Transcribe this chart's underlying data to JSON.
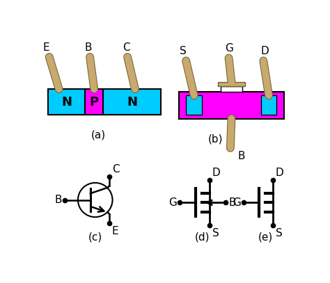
{
  "bg_color": "#ffffff",
  "cyan_color": "#00CCFF",
  "magenta_color": "#FF00FF",
  "lead_color": "#C8A96E",
  "lead_edge": "#7A6035",
  "black": "#000000",
  "fig_width": 4.74,
  "fig_height": 4.07,
  "dpi": 100,
  "label_a": "(a)",
  "label_b": "(b)",
  "label_c": "(c)",
  "label_d": "(d)",
  "label_e": "(e)"
}
